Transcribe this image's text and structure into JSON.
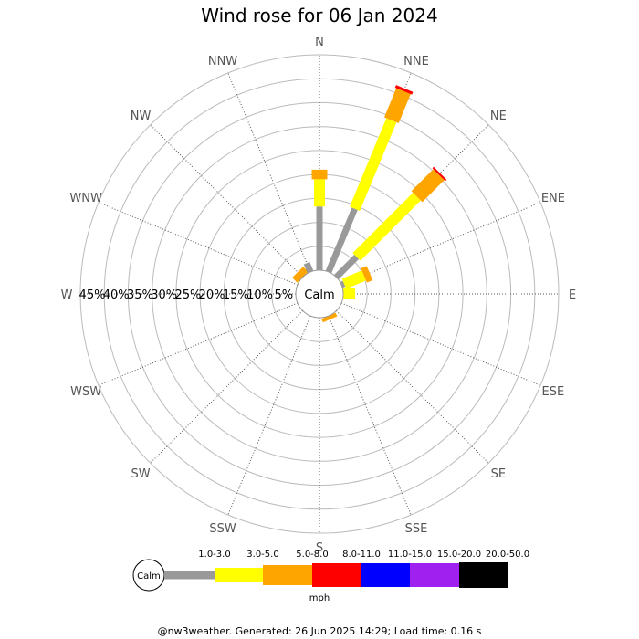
{
  "chart_data": {
    "type": "wind-rose",
    "title": "Wind rose for 06 Jan 2024",
    "calm_label": "Calm",
    "directions": [
      "N",
      "NNE",
      "NE",
      "ENE",
      "E",
      "ESE",
      "SE",
      "SSE",
      "S",
      "SSW",
      "SW",
      "WSW",
      "W",
      "WNW",
      "NW",
      "NNW"
    ],
    "radial_ticks": [
      "5%",
      "10%",
      "15%",
      "20%",
      "25%",
      "30%",
      "35%",
      "40%",
      "45%"
    ],
    "radial_max": 45,
    "speed_bins": [
      {
        "label": "1.0-3.0",
        "color": "#999999"
      },
      {
        "label": "3.0-5.0",
        "color": "#ffff00"
      },
      {
        "label": "5.0-8.0",
        "color": "#ffa500"
      },
      {
        "label": "8.0-11.0",
        "color": "#ff0000"
      },
      {
        "label": "11.0-15.0",
        "color": "#0000ff"
      },
      {
        "label": "15.0-20.0",
        "color": "#a020f0"
      },
      {
        "label": "20.0-50.0",
        "color": "#000000"
      }
    ],
    "units": "mph",
    "series": [
      {
        "direction": "N",
        "values": [
          13.3,
          5.7,
          2.0,
          0,
          0,
          0,
          0
        ]
      },
      {
        "direction": "NNE",
        "values": [
          14.3,
          20.0,
          6.6,
          0.6,
          0,
          0,
          0
        ]
      },
      {
        "direction": "NE",
        "values": [
          6.0,
          17.8,
          6.5,
          0.4,
          0,
          0,
          0
        ]
      },
      {
        "direction": "ENE",
        "values": [
          0.6,
          4.5,
          1.3,
          0,
          0,
          0,
          0
        ]
      },
      {
        "direction": "E",
        "values": [
          0,
          2.5,
          0,
          0,
          0,
          0,
          0
        ]
      },
      {
        "direction": "ESE",
        "values": [
          0,
          0,
          0,
          0,
          0,
          0,
          0
        ]
      },
      {
        "direction": "SE",
        "values": [
          0,
          0,
          0,
          0,
          0,
          0,
          0
        ]
      },
      {
        "direction": "SSE",
        "values": [
          0,
          0,
          0.8,
          0,
          0,
          0,
          0
        ]
      },
      {
        "direction": "S",
        "values": [
          0,
          0,
          0,
          0,
          0,
          0,
          0
        ]
      },
      {
        "direction": "SSW",
        "values": [
          0,
          0,
          0,
          0,
          0,
          0,
          0
        ]
      },
      {
        "direction": "SW",
        "values": [
          0,
          0,
          0,
          0,
          0,
          0,
          0
        ]
      },
      {
        "direction": "WSW",
        "values": [
          0,
          0,
          0,
          0,
          0,
          0,
          0
        ]
      },
      {
        "direction": "W",
        "values": [
          0,
          0,
          0,
          0,
          0,
          0,
          0
        ]
      },
      {
        "direction": "WNW",
        "values": [
          0,
          0,
          0,
          0,
          0,
          0,
          0
        ]
      },
      {
        "direction": "NW",
        "values": [
          0,
          0,
          1.5,
          0,
          0,
          0,
          0
        ]
      },
      {
        "direction": "NNW",
        "values": [
          2.0,
          0,
          0,
          0,
          0,
          0,
          0
        ]
      }
    ]
  },
  "footer": "@nw3weather. Generated: 26 Jun 2025 14:29; Load time: 0.16 s"
}
